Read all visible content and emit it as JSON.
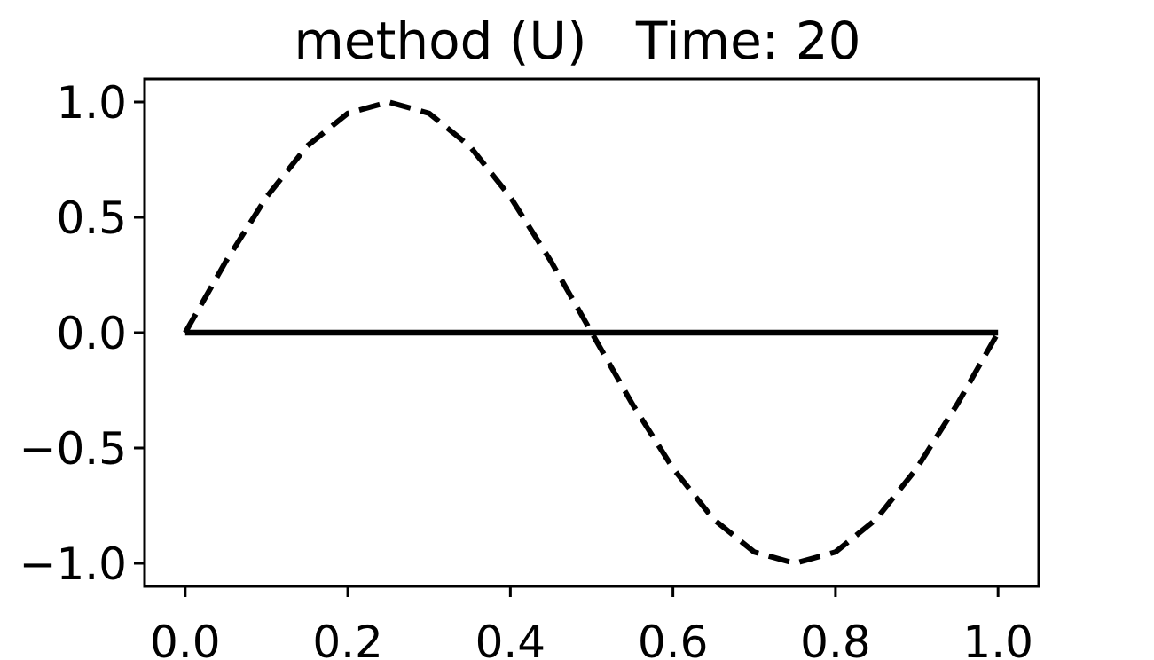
{
  "chart_data": {
    "type": "line",
    "title": "method (U)   Time: 20",
    "xlabel": "",
    "ylabel": "",
    "xlim": [
      -0.05,
      1.05
    ],
    "ylim": [
      -1.1,
      1.1
    ],
    "x_ticks": [
      0.0,
      0.2,
      0.4,
      0.6,
      0.8,
      1.0
    ],
    "x_tick_labels": [
      "0.0",
      "0.2",
      "0.4",
      "0.6",
      "0.8",
      "1.0"
    ],
    "y_ticks": [
      1.0,
      0.5,
      0.0,
      -0.5,
      -1.0
    ],
    "y_tick_labels": [
      "1.0",
      "0.5",
      "0.0",
      "−0.5",
      "−1.0"
    ],
    "grid": false,
    "legend": "none",
    "series": [
      {
        "style": "dashed",
        "color": "#000000",
        "x": [
          0.0,
          0.05,
          0.1,
          0.15,
          0.2,
          0.25,
          0.3,
          0.35,
          0.4,
          0.45,
          0.5,
          0.55,
          0.6,
          0.65,
          0.7,
          0.75,
          0.8,
          0.85,
          0.9,
          0.95,
          1.0
        ],
        "y": [
          0.0,
          0.309,
          0.588,
          0.809,
          0.951,
          1.0,
          0.951,
          0.809,
          0.588,
          0.309,
          0.0,
          -0.309,
          -0.588,
          -0.809,
          -0.951,
          -1.0,
          -0.951,
          -0.809,
          -0.588,
          -0.309,
          0.0
        ]
      },
      {
        "style": "solid",
        "color": "#000000",
        "x": [
          0.0,
          1.0
        ],
        "y": [
          0.0,
          0.0
        ]
      }
    ]
  }
}
